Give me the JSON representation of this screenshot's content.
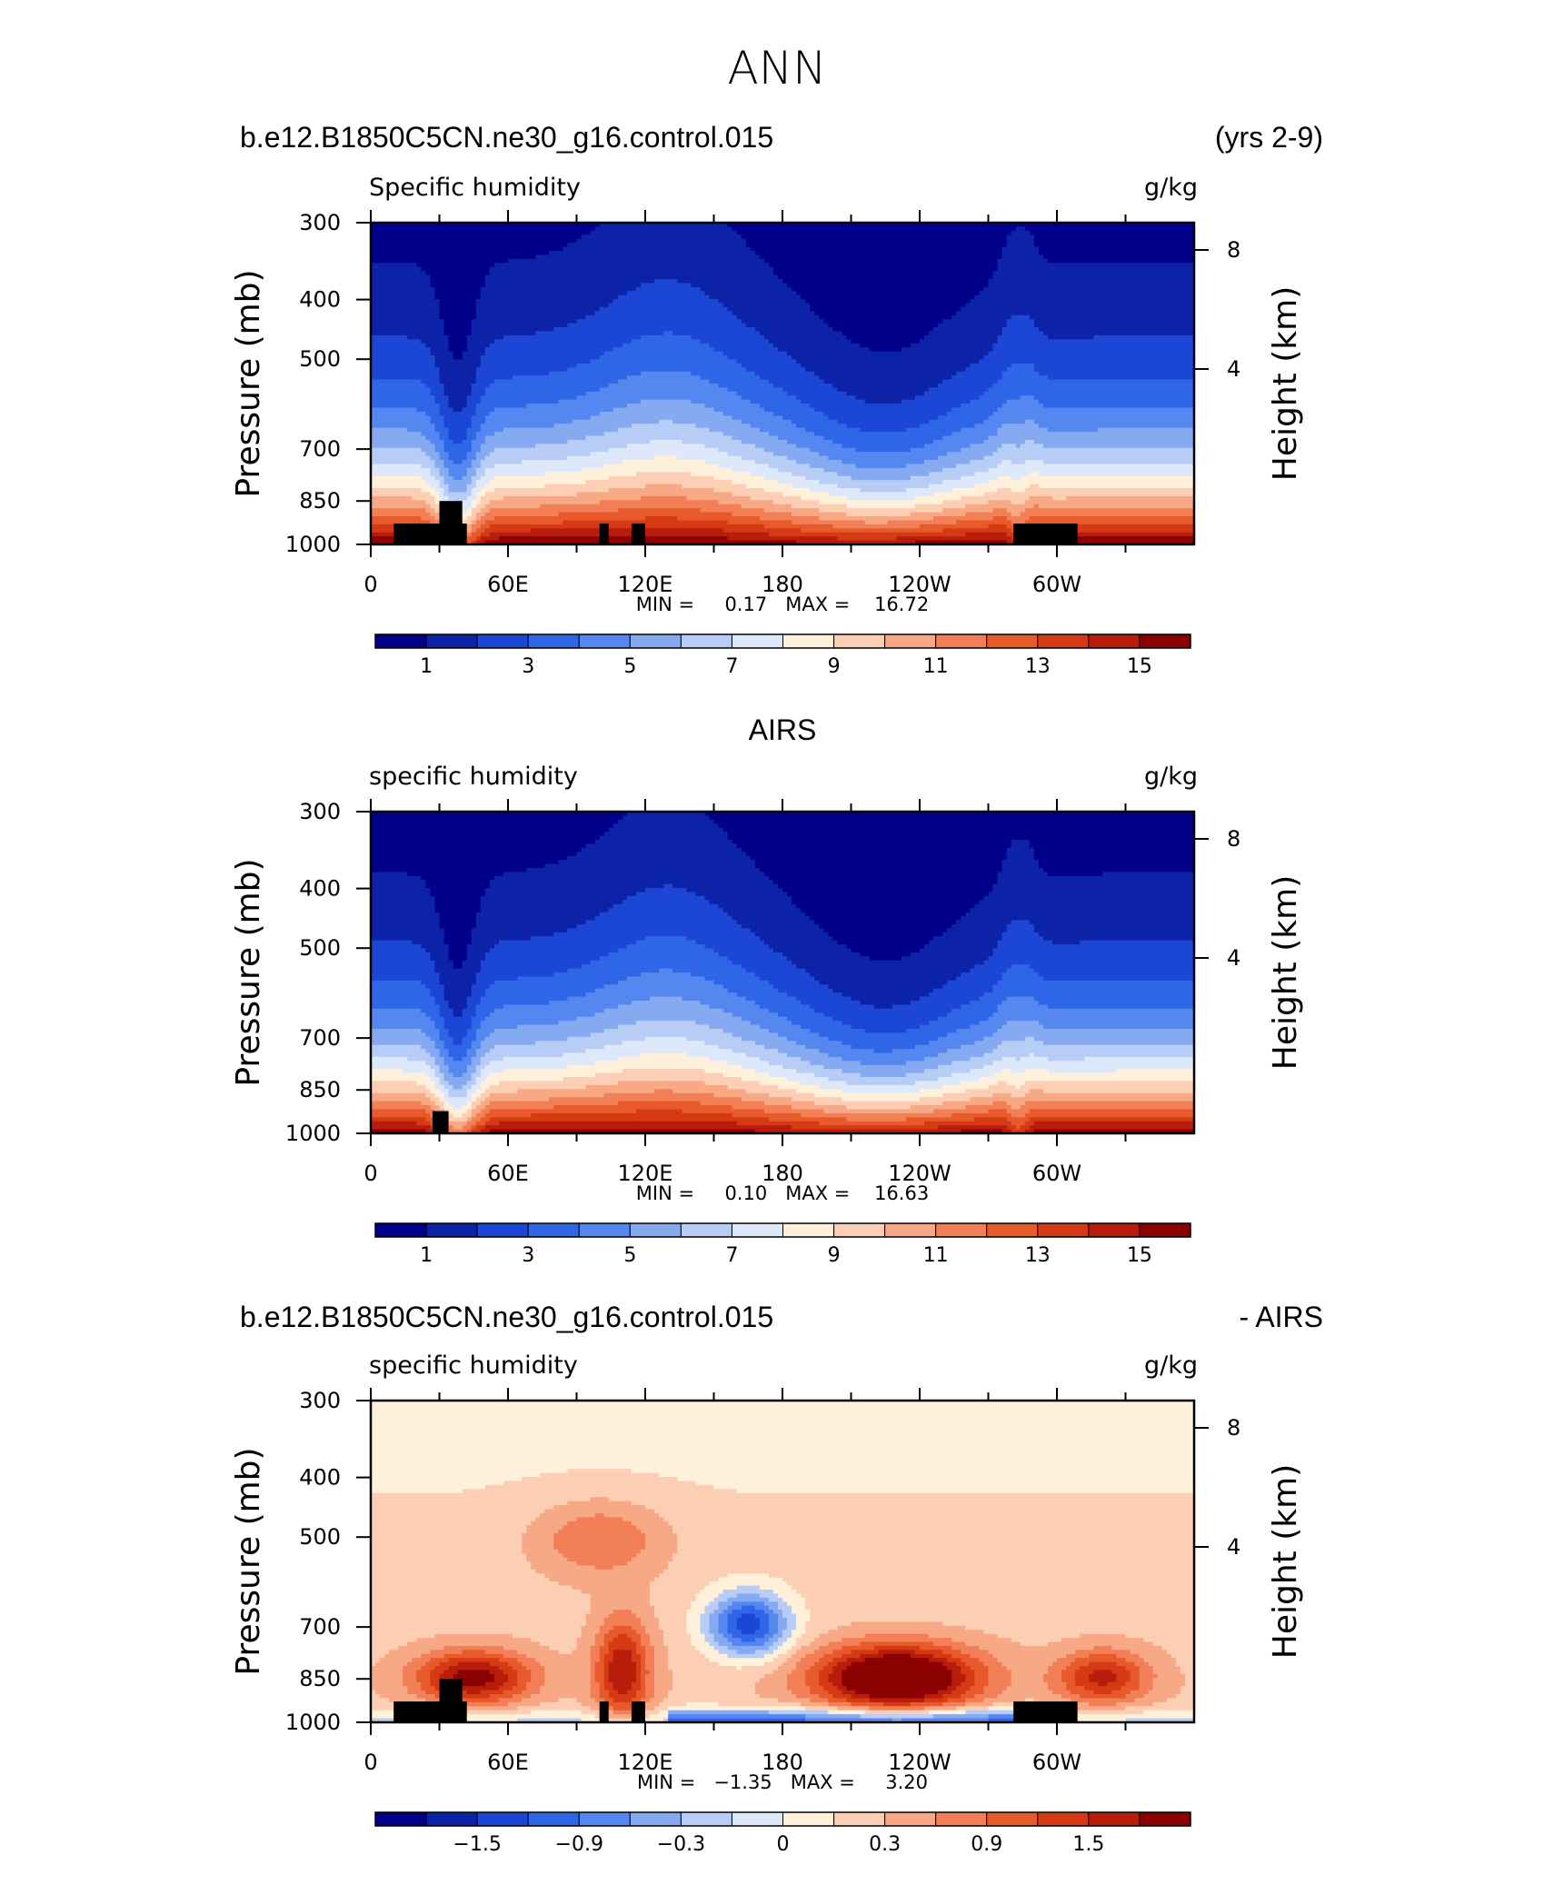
{
  "figure": {
    "title": "ANN"
  },
  "panels": [
    {
      "id": "model",
      "title_left": "b.e12.B1850C5CN.ne30_g16.control.015",
      "title_right": "(yrs 2-9)",
      "title_center": "",
      "var_label": "Specific humidity",
      "units": "g/kg",
      "stats": "MIN =     0.17   MAX =    16.72",
      "scale": "sequential"
    },
    {
      "id": "obs",
      "title_left": "",
      "title_right": "",
      "title_center": "AIRS",
      "var_label": "specific humidity",
      "units": "g/kg",
      "stats": "MIN =     0.10   MAX =    16.63",
      "scale": "sequential"
    },
    {
      "id": "diff",
      "title_left": "b.e12.B1850C5CN.ne30_g16.control.015",
      "title_right": "- AIRS",
      "title_center": "",
      "var_label": "specific humidity",
      "units": "g/kg",
      "stats": "MIN =   −1.35   MAX =     3.20",
      "scale": "diverging"
    }
  ],
  "chart_data": [
    {
      "type": "heatmap",
      "title": "Specific humidity",
      "xlabel": "",
      "ylabel": "Pressure (mb)",
      "y2label": "Height (km)",
      "x_ticks": [
        "0",
        "60E",
        "120E",
        "180",
        "120W",
        "60W"
      ],
      "y_ticks": [
        "300",
        "400",
        "500",
        "700",
        "850",
        "1000"
      ],
      "y2_ticks": [
        "8",
        "4"
      ],
      "min": 0.17,
      "max": 16.72,
      "colorbar_labels": [
        "1",
        "3",
        "5",
        "7",
        "9",
        "11",
        "13",
        "15"
      ]
    },
    {
      "type": "heatmap",
      "title": "specific humidity",
      "xlabel": "",
      "ylabel": "Pressure (mb)",
      "y2label": "Height (km)",
      "x_ticks": [
        "0",
        "60E",
        "120E",
        "180",
        "120W",
        "60W"
      ],
      "y_ticks": [
        "300",
        "400",
        "500",
        "700",
        "850",
        "1000"
      ],
      "y2_ticks": [
        "8",
        "4"
      ],
      "min": 0.1,
      "max": 16.63,
      "colorbar_labels": [
        "1",
        "3",
        "5",
        "7",
        "9",
        "11",
        "13",
        "15"
      ]
    },
    {
      "type": "heatmap",
      "title": "specific humidity",
      "xlabel": "",
      "ylabel": "Pressure (mb)",
      "y2label": "Height (km)",
      "x_ticks": [
        "0",
        "60E",
        "120E",
        "180",
        "120W",
        "60W"
      ],
      "y_ticks": [
        "300",
        "400",
        "500",
        "700",
        "850",
        "1000"
      ],
      "y2_ticks": [
        "8",
        "4"
      ],
      "min": -1.35,
      "max": 3.2,
      "colorbar_labels": [
        "−1.5",
        "−0.9",
        "−0.3",
        "0",
        "0.3",
        "0.9",
        "1.5"
      ]
    }
  ],
  "colors": {
    "sequential": [
      "#00008b",
      "#0c23a8",
      "#1c47d6",
      "#2f66e8",
      "#5587f0",
      "#86aaf2",
      "#b7cdf6",
      "#dde9fa",
      "#fff0dc",
      "#fccfb4",
      "#f7a986",
      "#f27f56",
      "#e85a2c",
      "#d63a14",
      "#b81d0c",
      "#8b0000"
    ],
    "diverging": [
      "#00008b",
      "#0c23a8",
      "#1c47d6",
      "#2f66e8",
      "#5587f0",
      "#86aaf2",
      "#b7cdf6",
      "#dde9fa",
      "#fff0dc",
      "#fccfb4",
      "#f7a986",
      "#f27f56",
      "#e85a2c",
      "#d63a14",
      "#b81d0c",
      "#8b0000"
    ],
    "topography": "#000000"
  }
}
